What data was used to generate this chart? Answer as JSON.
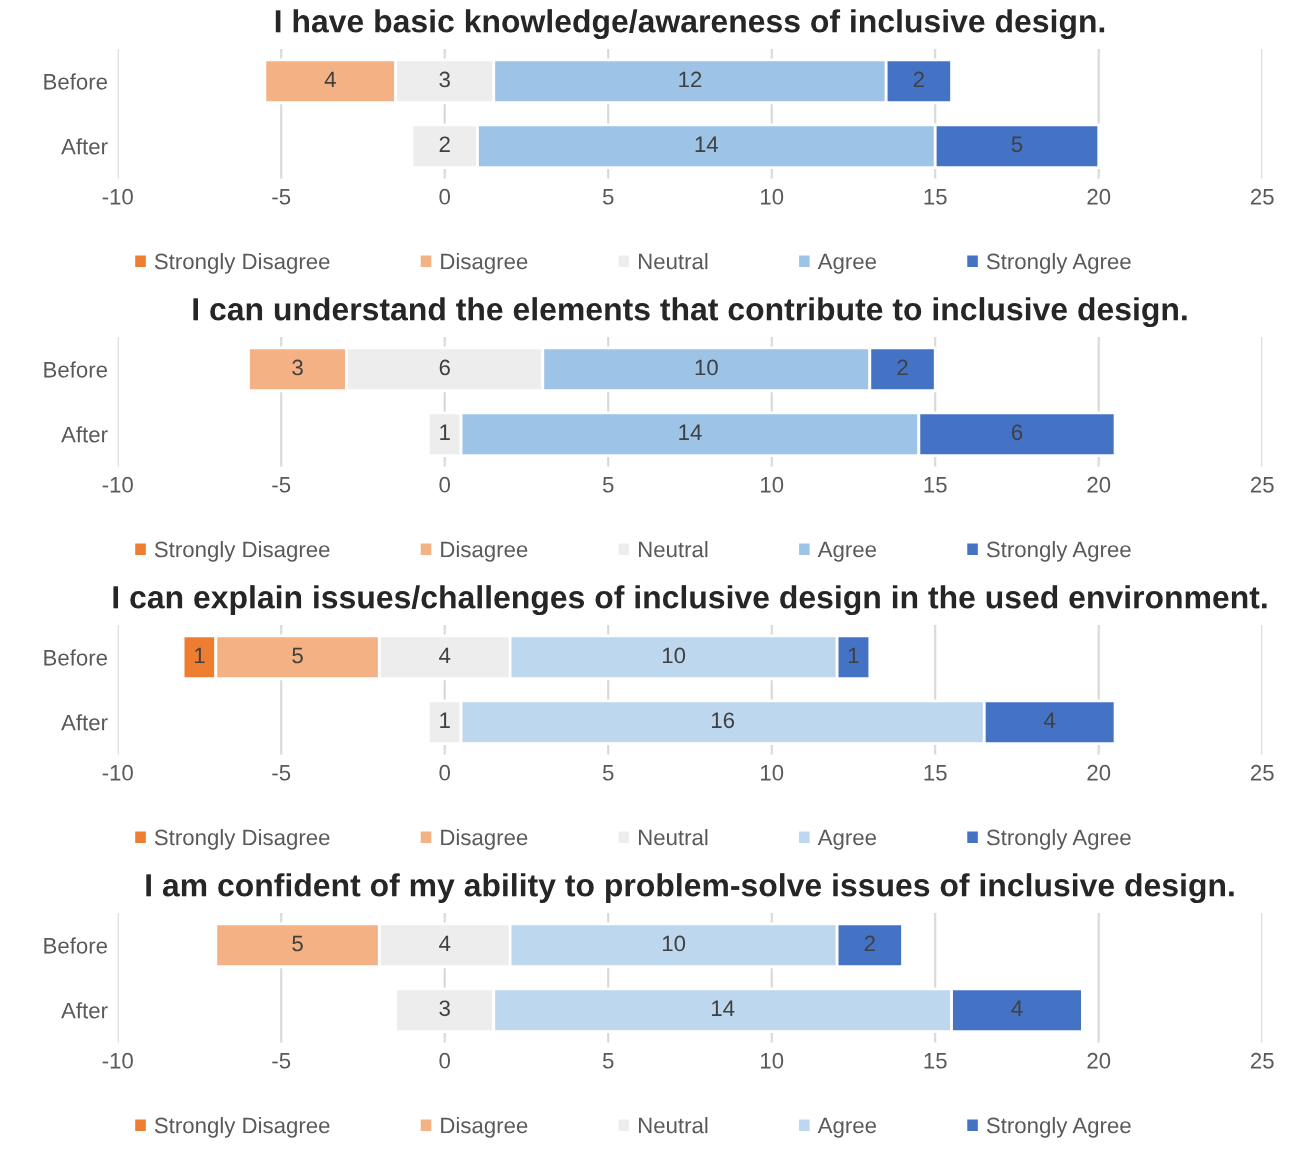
{
  "chart_data": [
    {
      "type": "bar",
      "title": "I have basic knowledge/awareness of inclusive design.",
      "orientation": "horizontal",
      "categories": [
        "Before",
        "After"
      ],
      "xlim": [
        -10,
        25
      ],
      "xticks": [
        -10,
        -5,
        0,
        5,
        10,
        15,
        20,
        25
      ],
      "grid": "x",
      "legend": "bottom",
      "data_labels": true,
      "series": [
        {
          "name": "Strongly Disagree",
          "color": "#ed7d31",
          "values": [
            null,
            null
          ],
          "base": [
            null,
            null
          ]
        },
        {
          "name": "Disagree",
          "color": "#f4b183",
          "values": [
            4,
            null
          ],
          "base": [
            -5.5,
            null
          ]
        },
        {
          "name": "Neutral",
          "color": "#ededed",
          "values": [
            3,
            2
          ],
          "base": [
            -1.5,
            -1
          ]
        },
        {
          "name": "Agree",
          "color": "#9dc3e6",
          "values": [
            12,
            14
          ],
          "base": [
            1.5,
            1
          ]
        },
        {
          "name": "Strongly Agree",
          "color": "#4472c4",
          "values": [
            2,
            5
          ],
          "base": [
            13.5,
            15
          ]
        }
      ]
    },
    {
      "type": "bar",
      "title": "I can understand the elements that contribute to inclusive design.",
      "orientation": "horizontal",
      "categories": [
        "Before",
        "After"
      ],
      "xlim": [
        -10,
        25
      ],
      "xticks": [
        -10,
        -5,
        0,
        5,
        10,
        15,
        20,
        25
      ],
      "grid": "x",
      "legend": "bottom",
      "data_labels": true,
      "series": [
        {
          "name": "Strongly Disagree",
          "color": "#ed7d31",
          "values": [
            null,
            null
          ],
          "base": [
            null,
            null
          ]
        },
        {
          "name": "Disagree",
          "color": "#f4b183",
          "values": [
            3,
            null
          ],
          "base": [
            -6,
            null
          ]
        },
        {
          "name": "Neutral",
          "color": "#ededed",
          "values": [
            6,
            1
          ],
          "base": [
            -3,
            -0.5
          ]
        },
        {
          "name": "Agree",
          "color": "#9dc3e6",
          "values": [
            10,
            14
          ],
          "base": [
            3,
            0.5
          ]
        },
        {
          "name": "Strongly Agree",
          "color": "#4472c4",
          "values": [
            2,
            6
          ],
          "base": [
            13,
            14.5
          ]
        }
      ]
    },
    {
      "type": "bar",
      "title": "I can explain issues/challenges of inclusive design in the used environment.",
      "orientation": "horizontal",
      "categories": [
        "Before",
        "After"
      ],
      "xlim": [
        -10,
        25
      ],
      "xticks": [
        -10,
        -5,
        0,
        5,
        10,
        15,
        20,
        25
      ],
      "grid": "x",
      "legend": "bottom",
      "data_labels": true,
      "series": [
        {
          "name": "Strongly Disagree",
          "color": "#ed7d31",
          "values": [
            1,
            null
          ],
          "base": [
            -8,
            null
          ]
        },
        {
          "name": "Disagree",
          "color": "#f4b183",
          "values": [
            5,
            null
          ],
          "base": [
            -7,
            null
          ]
        },
        {
          "name": "Neutral",
          "color": "#ededed",
          "values": [
            4,
            1
          ],
          "base": [
            -2,
            -0.5
          ]
        },
        {
          "name": "Agree",
          "color": "#bdd7ee",
          "values": [
            10,
            16
          ],
          "base": [
            2,
            0.5
          ]
        },
        {
          "name": "Strongly Agree",
          "color": "#4472c4",
          "values": [
            1,
            4
          ],
          "base": [
            12,
            16.5
          ]
        }
      ]
    },
    {
      "type": "bar",
      "title": "I am confident of my ability to problem-solve issues of inclusive design.",
      "orientation": "horizontal",
      "categories": [
        "Before",
        "After"
      ],
      "xlim": [
        -10,
        25
      ],
      "xticks": [
        -10,
        -5,
        0,
        5,
        10,
        15,
        20,
        25
      ],
      "grid": "x",
      "legend": "bottom",
      "data_labels": true,
      "series": [
        {
          "name": "Strongly Disagree",
          "color": "#ed7d31",
          "values": [
            null,
            null
          ],
          "base": [
            null,
            null
          ]
        },
        {
          "name": "Disagree",
          "color": "#f4b183",
          "values": [
            5,
            null
          ],
          "base": [
            -7,
            null
          ]
        },
        {
          "name": "Neutral",
          "color": "#ededed",
          "values": [
            4,
            3
          ],
          "base": [
            -2,
            -1.5
          ]
        },
        {
          "name": "Agree",
          "color": "#bdd7ee",
          "values": [
            10,
            14
          ],
          "base": [
            2,
            1.5
          ]
        },
        {
          "name": "Strongly Agree",
          "color": "#4472c4",
          "values": [
            2,
            4
          ],
          "base": [
            12,
            15.5
          ]
        }
      ]
    }
  ]
}
